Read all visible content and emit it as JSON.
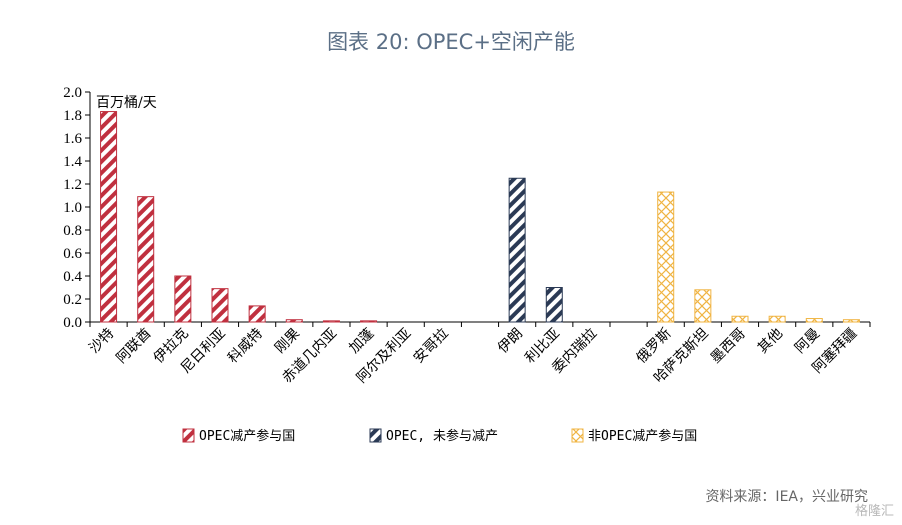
{
  "title": "图表 20: OPEC+空闲产能",
  "source": "资料来源：IEA，兴业研究",
  "watermark": "格隆汇",
  "chart_data": {
    "type": "bar",
    "ylabel": "百万桶/天",
    "ylim": [
      0,
      2.0
    ],
    "yticks": [
      "0.0",
      "0.2",
      "0.4",
      "0.6",
      "0.8",
      "1.0",
      "1.2",
      "1.4",
      "1.6",
      "1.8",
      "2.0"
    ],
    "grid": false,
    "legend_position": "bottom",
    "categories": [
      "沙特",
      "阿联酋",
      "伊拉克",
      "尼日利亚",
      "科威特",
      "刚果",
      "赤道几内亚",
      "加蓬",
      "阿尔及利亚",
      "安哥拉",
      "",
      "伊朗",
      "利比亚",
      "委内瑞拉",
      "",
      "俄罗斯",
      "哈萨克斯坦",
      "墨西哥",
      "其他",
      "阿曼",
      "阿塞拜疆"
    ],
    "series": [
      {
        "name": "OPEC减产参与国",
        "color": "#c0303f",
        "pattern": "diagonal-stripes",
        "values": [
          1.83,
          1.09,
          0.4,
          0.29,
          0.14,
          0.02,
          0.01,
          0.01,
          0.0,
          0.0,
          null,
          null,
          null,
          null,
          null,
          null,
          null,
          null,
          null,
          null,
          null
        ]
      },
      {
        "name": "OPEC, 未参与减产",
        "color": "#2b3a55",
        "pattern": "diagonal-stripes",
        "values": [
          null,
          null,
          null,
          null,
          null,
          null,
          null,
          null,
          null,
          null,
          null,
          1.25,
          0.3,
          0.0,
          null,
          null,
          null,
          null,
          null,
          null,
          null
        ]
      },
      {
        "name": "非OPEC减产参与国",
        "color": "#f0b442",
        "pattern": "crosshatch",
        "values": [
          null,
          null,
          null,
          null,
          null,
          null,
          null,
          null,
          null,
          null,
          null,
          null,
          null,
          null,
          null,
          1.13,
          0.28,
          0.05,
          0.05,
          0.03,
          0.02
        ]
      }
    ]
  }
}
